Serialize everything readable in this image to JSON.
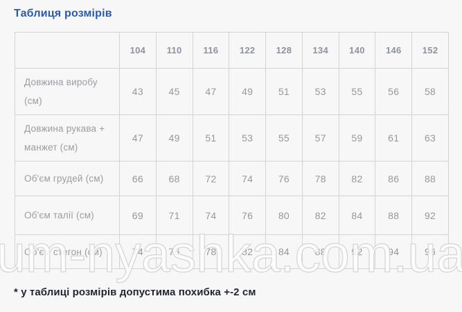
{
  "title": "Таблиця розмірів",
  "table": {
    "corner_label": "",
    "sizes": [
      "104",
      "110",
      "116",
      "122",
      "128",
      "134",
      "140",
      "146",
      "152"
    ],
    "rows": [
      {
        "label": "Довжина виробу (см)",
        "values": [
          "43",
          "45",
          "47",
          "49",
          "51",
          "53",
          "55",
          "56",
          "58"
        ]
      },
      {
        "label": "Довжина рукава + манжет (см)",
        "values": [
          "47",
          "49",
          "51",
          "53",
          "55",
          "57",
          "59",
          "61",
          "63"
        ]
      },
      {
        "label": "Об'єм грудей (см)",
        "values": [
          "66",
          "68",
          "72",
          "74",
          "76",
          "78",
          "82",
          "86",
          "88"
        ]
      },
      {
        "label": "Об'єм талії (см)",
        "values": [
          "69",
          "71",
          "74",
          "76",
          "80",
          "82",
          "84",
          "88",
          "92"
        ]
      },
      {
        "label": "Об'єм стегон (см)",
        "values": [
          "74",
          "76",
          "78",
          "82",
          "84",
          "88",
          "92",
          "94",
          "96"
        ]
      }
    ]
  },
  "chart_data": {
    "type": "table",
    "title": "Таблиця розмірів",
    "categories": [
      "104",
      "110",
      "116",
      "122",
      "128",
      "134",
      "140",
      "146",
      "152"
    ],
    "series": [
      {
        "name": "Довжина виробу (см)",
        "values": [
          43,
          45,
          47,
          49,
          51,
          53,
          55,
          56,
          58
        ]
      },
      {
        "name": "Довжина рукава + манжет (см)",
        "values": [
          47,
          49,
          51,
          53,
          55,
          57,
          59,
          61,
          63
        ]
      },
      {
        "name": "Об'єм грудей (см)",
        "values": [
          66,
          68,
          72,
          74,
          76,
          78,
          82,
          86,
          88
        ]
      },
      {
        "name": "Об'єм талії (см)",
        "values": [
          69,
          71,
          74,
          76,
          80,
          82,
          84,
          88,
          92
        ]
      },
      {
        "name": "Об'єм стегон (см)",
        "values": [
          74,
          76,
          78,
          82,
          84,
          88,
          92,
          94,
          96
        ]
      }
    ]
  },
  "footnote": "* у таблиці розмірів допустима похибка +-2 см",
  "watermark": "um-nyashka.com.ua",
  "colors": {
    "title": "#2b5aa7",
    "table_text": "#96979c",
    "header_text": "#8d929b",
    "border": "#d2d3d5",
    "background": "#f7f7f8",
    "footnote": "#1f2430",
    "watermark_stroke": "#d6d6d8",
    "watermark_fill": "#fdfdfd"
  }
}
